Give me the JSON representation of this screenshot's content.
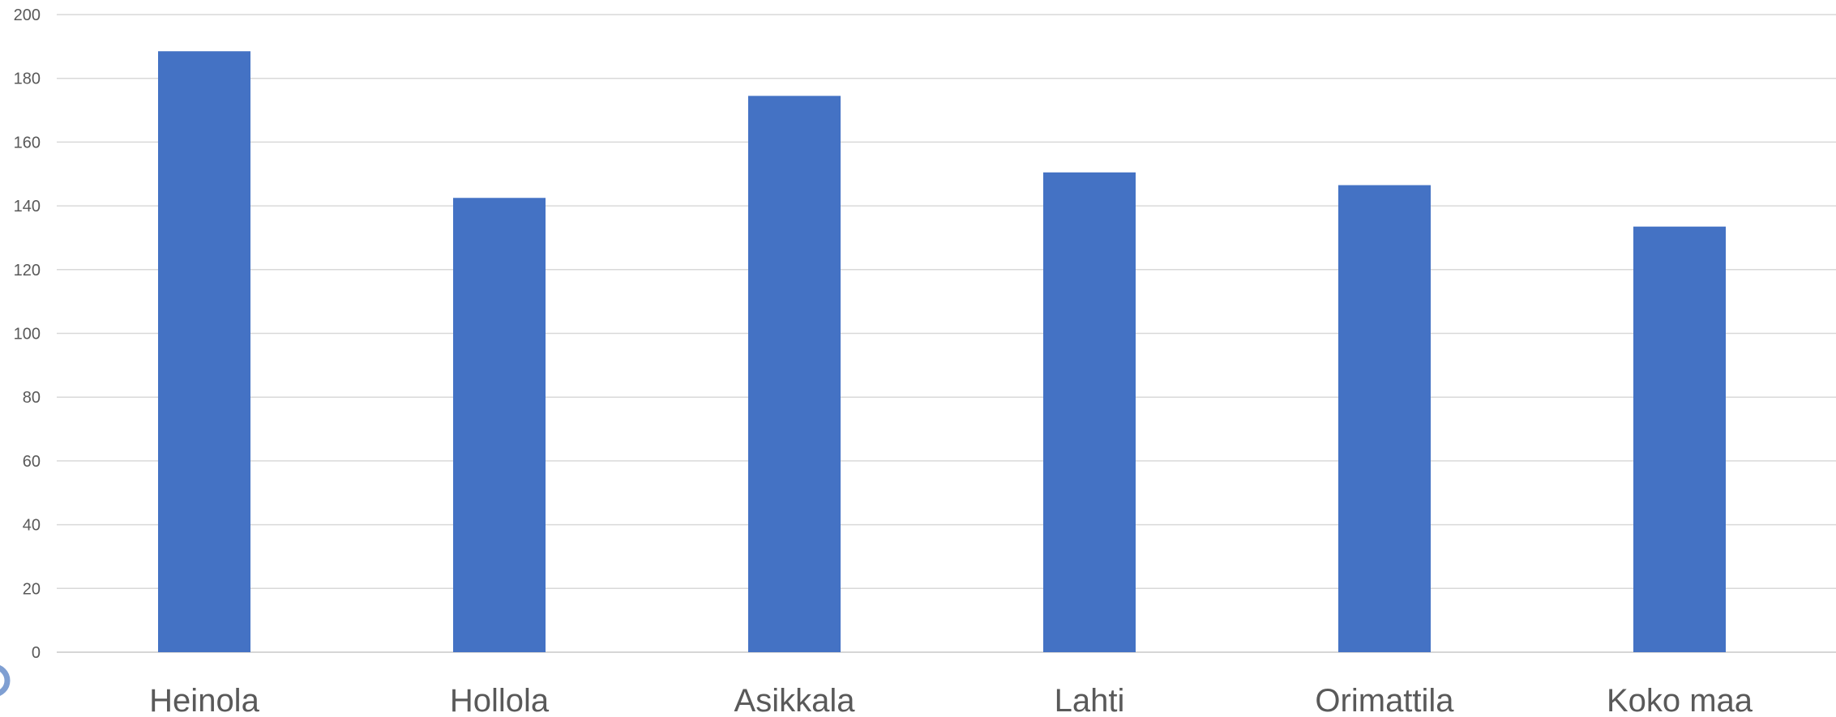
{
  "chart_data": {
    "type": "bar",
    "title": "",
    "xlabel": "",
    "ylabel": "",
    "categories": [
      "Heinola",
      "Hollola",
      "Asikkala",
      "Lahti",
      "Orimattila",
      "Koko maa"
    ],
    "values": [
      188.5,
      142.5,
      174.5,
      150.5,
      146.5,
      133.5
    ],
    "ylim": [
      0,
      200
    ],
    "yticks": [
      "0",
      "20",
      "40",
      "60",
      "80",
      "100",
      "120",
      "140",
      "160",
      "180",
      "200"
    ],
    "grid": true,
    "legend": "none",
    "bar_color": "#4472c4"
  }
}
